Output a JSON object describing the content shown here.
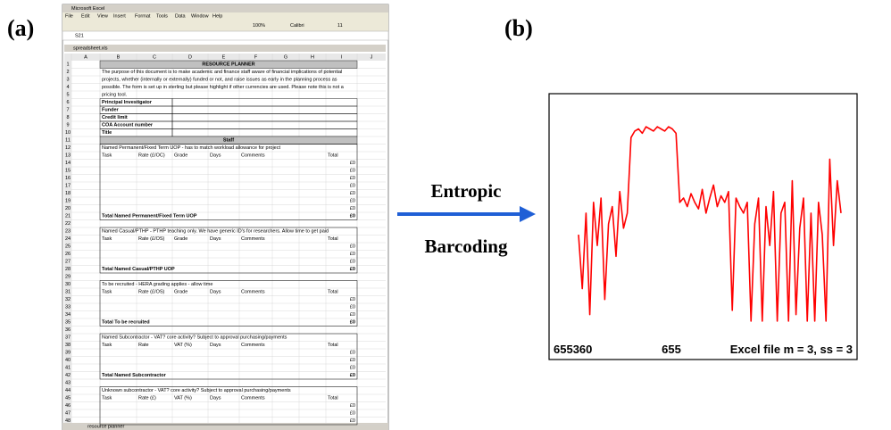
{
  "figure": {
    "panel_a_label": "(a)",
    "panel_b_label": "(b)",
    "arrow_top": "Entropic",
    "arrow_bottom": "Barcoding"
  },
  "excel": {
    "app_title": "Microsoft Excel",
    "menu": [
      "File",
      "Edit",
      "View",
      "Insert",
      "Format",
      "Tools",
      "Data",
      "Window",
      "Help"
    ],
    "zoom": "100%",
    "font": "Calibri",
    "font_size": "11",
    "cell_ref": "S21",
    "window_title": "spreadsheet.xls",
    "columns": [
      "A",
      "B",
      "C",
      "D",
      "E",
      "F",
      "G",
      "H",
      "I",
      "J"
    ],
    "row_numbers": [
      "1",
      "2",
      "3",
      "4",
      "5",
      "6",
      "7",
      "8",
      "9",
      "10",
      "11",
      "12",
      "13",
      "14",
      "15",
      "16",
      "17",
      "18",
      "19",
      "20",
      "21",
      "22",
      "23",
      "24",
      "25",
      "26",
      "27",
      "28",
      "29",
      "30",
      "31",
      "32",
      "33",
      "34",
      "35",
      "36",
      "37",
      "38",
      "39",
      "40",
      "41",
      "42",
      "43",
      "44",
      "45",
      "46",
      "47",
      "48"
    ],
    "title": "RESOURCE PLANNER",
    "intro": [
      "The purpose of this document is to make academic and finance staff aware of financial implications of potential",
      "projects, whether (internally or externally) funded or not, and raise issues as early in the planning process as",
      "possible. The form is set up in sterling but please highlight if other currencies are used. Please note this is not a",
      "pricing tool."
    ],
    "fields": [
      "Principal Investigator",
      "Funder",
      "Credit limit",
      "COA Account number",
      "Title"
    ],
    "staff": "Staff",
    "sections": [
      {
        "heading": "Named Permanent/Fixed Term UOP - has to match workload allowance for project",
        "columns": [
          "Task",
          "Rate (£/OC)",
          "Grade",
          "Days",
          "Comments",
          "Total"
        ],
        "values": [
          "£0",
          "£0",
          "£0",
          "£0",
          "£0",
          "£0",
          "£0"
        ],
        "total_label": "Total Named Permanent/Fixed Term UOP",
        "total_value": "£0"
      },
      {
        "heading": "Named Casual/PTHP - PTHP teaching only. We have generic ID's for researchers. Allow time to get paid",
        "columns": [
          "Task",
          "Rate (£/OS)",
          "Grade",
          "Days",
          "Comments",
          "Total"
        ],
        "values": [
          "£0",
          "£0",
          "£0"
        ],
        "total_label": "Total Named Casual/PTHP UOP",
        "total_value": "£0"
      },
      {
        "heading": "To be recruited - HERA grading applies - allow time",
        "columns": [
          "Task",
          "Rate (£/OS)",
          "Grade",
          "Days",
          "Comments",
          "Total"
        ],
        "values": [
          "£0",
          "£0",
          "£0"
        ],
        "total_label": "Total To be recruited",
        "total_value": "£0"
      },
      {
        "heading": "Named Subcontractor - VAT? core activity? Subject to approval purchasing/payments",
        "columns": [
          "Task",
          "Rate",
          "VAT (%)",
          "Days",
          "Comments",
          "Total"
        ],
        "values": [
          "£0",
          "£0",
          "£0"
        ],
        "total_label": "Total Named Subcontractor",
        "total_value": "£0"
      },
      {
        "heading": "Unknown subcontractor - VAT? core activity? Subject to approval purchasing/payments",
        "columns": [
          "Task",
          "Rate (£)",
          "VAT (%)",
          "Days",
          "Comments",
          "Total"
        ],
        "values": [
          "£0",
          "£0",
          "£0"
        ]
      }
    ],
    "sheet_tab": "resource planner"
  },
  "chart_data": {
    "type": "line",
    "color": "#ff0000",
    "ylim": [
      0,
      100
    ],
    "values": [
      45,
      20,
      55,
      8,
      60,
      40,
      62,
      15,
      50,
      58,
      35,
      65,
      48,
      55,
      90,
      93,
      94,
      92,
      95,
      94,
      93,
      95,
      94,
      93,
      95,
      94,
      92,
      60,
      62,
      58,
      64,
      60,
      57,
      66,
      55,
      62,
      68,
      58,
      63,
      60,
      65,
      10,
      62,
      58,
      55,
      60,
      5,
      50,
      62,
      5,
      58,
      40,
      65,
      5,
      55,
      60,
      5,
      70,
      8,
      48,
      62,
      5,
      55,
      5,
      60,
      45,
      5,
      80,
      40,
      70,
      55
    ],
    "annotations": [
      "655360",
      "655",
      "Excel file  m = 3, ss = 3"
    ]
  }
}
